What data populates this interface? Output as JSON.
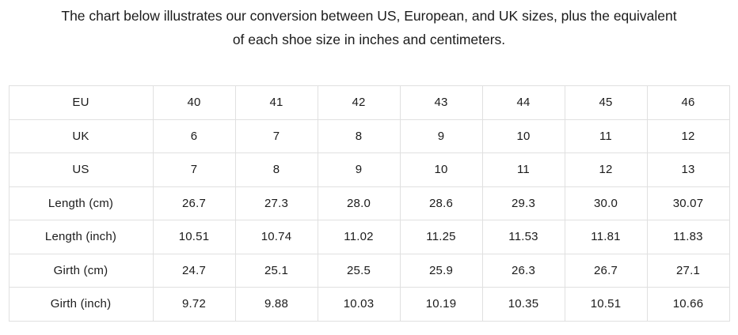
{
  "page": {
    "title_line1": "The chart below illustrates our conversion between US, European, and UK sizes, plus the equivalent",
    "title_line2": "of each shoe size in inches and centimeters."
  },
  "colors": {
    "background": "#ffffff",
    "text": "#1b1b1b",
    "table_border": "#e0e0e0"
  },
  "size_chart": {
    "rows": [
      {
        "label": "EU",
        "values": [
          "40",
          "41",
          "42",
          "43",
          "44",
          "45",
          "46"
        ]
      },
      {
        "label": "UK",
        "values": [
          "6",
          "7",
          "8",
          "9",
          "10",
          "11",
          "12"
        ]
      },
      {
        "label": "US",
        "values": [
          "7",
          "8",
          "9",
          "10",
          "11",
          "12",
          "13"
        ]
      },
      {
        "label": "Length (cm)",
        "values": [
          "26.7",
          "27.3",
          "28.0",
          "28.6",
          "29.3",
          "30.0",
          "30.07"
        ]
      },
      {
        "label": "Length (inch)",
        "values": [
          "10.51",
          "10.74",
          "11.02",
          "11.25",
          "11.53",
          "11.81",
          "11.83"
        ]
      },
      {
        "label": "Girth (cm)",
        "values": [
          "24.7",
          "25.1",
          "25.5",
          "25.9",
          "26.3",
          "26.7",
          "27.1"
        ]
      },
      {
        "label": "Girth (inch)",
        "values": [
          "9.72",
          "9.88",
          "10.03",
          "10.19",
          "10.35",
          "10.51",
          "10.66"
        ]
      }
    ]
  }
}
